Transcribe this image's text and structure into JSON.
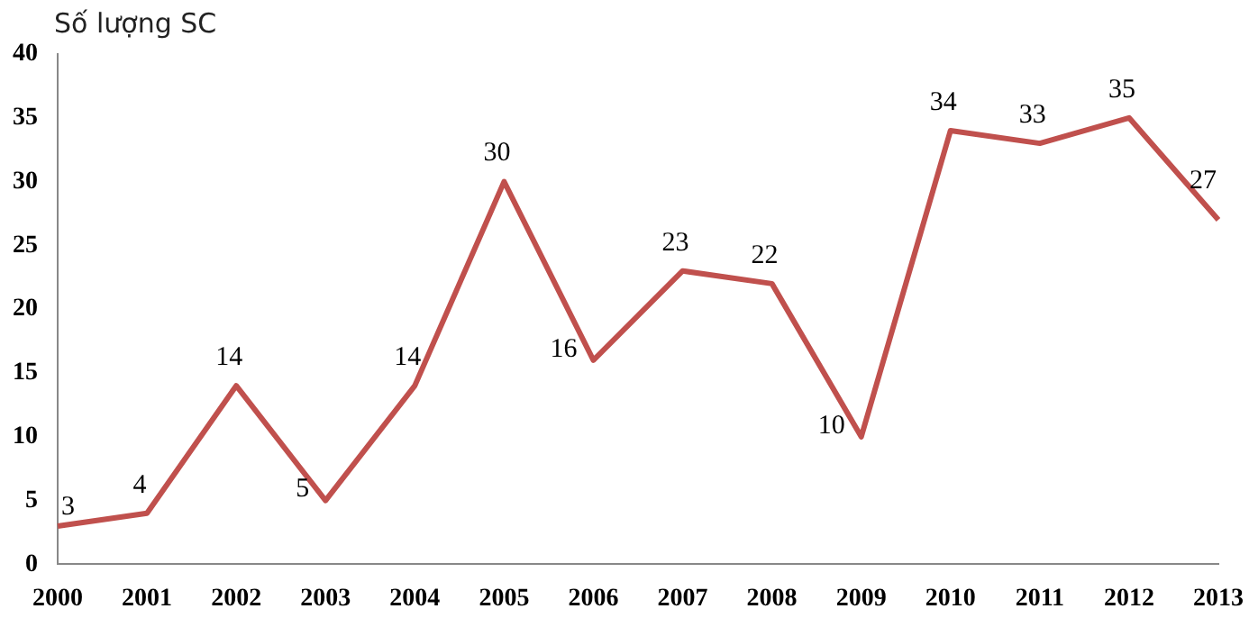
{
  "chart_data": {
    "type": "line",
    "ylabel": "Số lượng SC",
    "categories": [
      "2000",
      "2001",
      "2002",
      "2003",
      "2004",
      "2005",
      "2006",
      "2007",
      "2008",
      "2009",
      "2010",
      "2011",
      "2012",
      "2013"
    ],
    "series": [
      {
        "color": "#c0504d",
        "values": [
          3,
          4,
          14,
          5,
          14,
          30,
          16,
          23,
          22,
          10,
          34,
          33,
          35,
          27
        ]
      }
    ],
    "ylim": [
      0,
      40
    ],
    "yticks": [
      0,
      5,
      10,
      15,
      20,
      25,
      30,
      35,
      40
    ],
    "grid": false,
    "legend": false,
    "marker": "none",
    "line_style": "solid",
    "data_labels": true
  }
}
